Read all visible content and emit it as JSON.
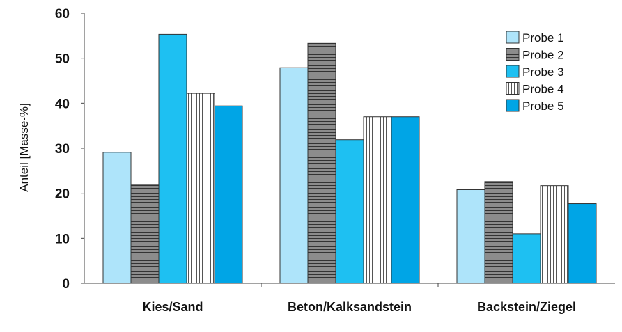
{
  "chart_data": {
    "type": "bar",
    "title": "",
    "xlabel": "",
    "ylabel": "Anteil [Masse-%]",
    "ylim": [
      0,
      60
    ],
    "yticks": [
      0,
      10,
      20,
      30,
      40,
      50,
      60
    ],
    "grid": false,
    "legend_position": "top-right",
    "categories": [
      "Kies/Sand",
      "Beton/Kalksandstein",
      "Backstein/Ziegel"
    ],
    "series": [
      {
        "name": "Probe 1",
        "values": [
          29.1,
          47.9,
          20.8
        ],
        "color": "#aee4fa",
        "pattern": "solid"
      },
      {
        "name": "Probe 2",
        "values": [
          22.0,
          53.3,
          22.6
        ],
        "color": "#8c8c8c",
        "pattern": "horizontal-lines"
      },
      {
        "name": "Probe 3",
        "values": [
          55.3,
          31.9,
          11.0
        ],
        "color": "#1ec0f2",
        "pattern": "solid"
      },
      {
        "name": "Probe 4",
        "values": [
          42.2,
          37.0,
          21.7
        ],
        "color": "#ffffff",
        "pattern": "vertical-lines"
      },
      {
        "name": "Probe 5",
        "values": [
          39.4,
          37.0,
          17.7
        ],
        "color": "#00a5e6",
        "pattern": "solid"
      }
    ]
  }
}
